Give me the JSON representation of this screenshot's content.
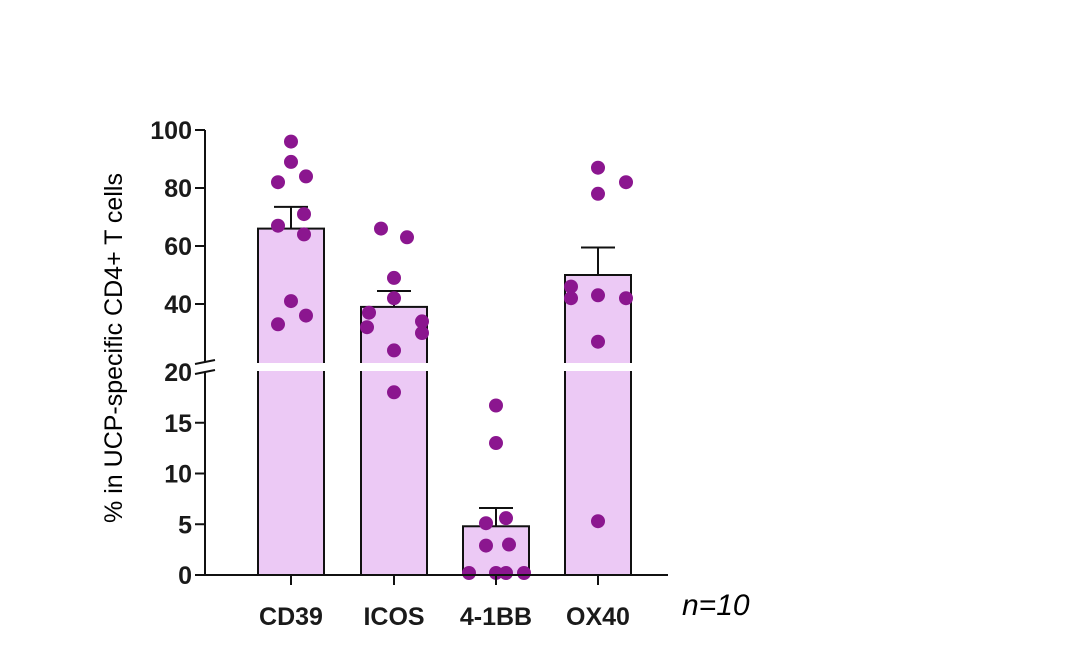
{
  "chart_data": {
    "type": "bar",
    "ylabel": "% in UCP-specific CD4+ T cells",
    "annotation": "n=10",
    "categories": [
      "CD39",
      "ICOS",
      "4-1BB",
      "OX40"
    ],
    "means": [
      66,
      39,
      4.8,
      50
    ],
    "sem": [
      7.5,
      5.5,
      1.8,
      9.5
    ],
    "points": [
      [
        96,
        89,
        84,
        82,
        71,
        67,
        64,
        41,
        36,
        33
      ],
      [
        66,
        63,
        49,
        42,
        37,
        34,
        32,
        30,
        24,
        18
      ],
      [
        16.7,
        13,
        5.6,
        5.1,
        3.0,
        2.9,
        0.2,
        0.1,
        0.1,
        0.05
      ],
      [
        87,
        82,
        78,
        46,
        43,
        42,
        42,
        27,
        5.3
      ]
    ],
    "y_axis_upper": {
      "range": [
        20,
        100
      ],
      "ticks": [
        "20",
        "40",
        "60",
        "80",
        "100"
      ]
    },
    "y_axis_lower": {
      "range": [
        0,
        20
      ],
      "ticks": [
        "0",
        "5",
        "10",
        "15",
        "20"
      ]
    },
    "axis_break": true,
    "grid": false,
    "colors": {
      "bar_fill": "#ecc9f5",
      "bar_stroke": "#111111",
      "point": "#8b168f",
      "axis": "#111111"
    }
  }
}
